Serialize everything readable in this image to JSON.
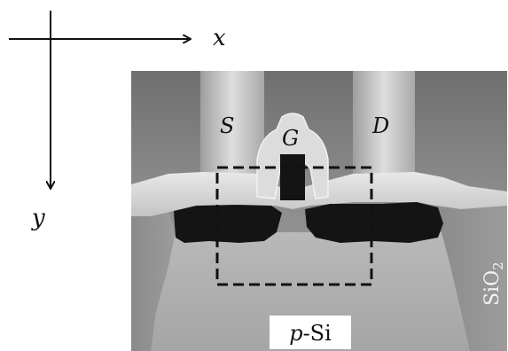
{
  "axes": {
    "x_label": "x",
    "y_label": "y"
  },
  "labels": {
    "source": "S",
    "gate": "G",
    "drain": "D",
    "oxide_main": "SiO",
    "oxide_sub": "2",
    "substrate_prefix": "p",
    "substrate_suffix": "-Si"
  },
  "colors": {
    "background": "#ffffff",
    "ink": "#111111",
    "dark_region": "#141414",
    "dashed_box": "#111111"
  }
}
